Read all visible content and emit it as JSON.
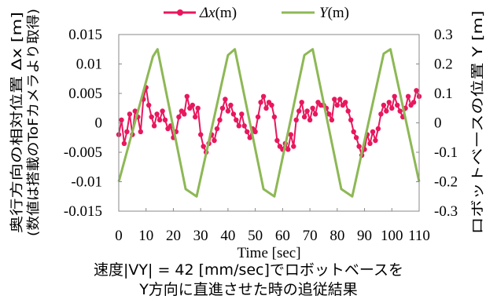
{
  "chart_data": {
    "type": "line",
    "xlabel": "Time [sec]",
    "y1label_line1": "奥行方向の相対位置 Δx [m]",
    "y1label_line2": "(数値は搭載のToFカメラより取得)",
    "y2label": "ロボットベースの位置  Y [m]",
    "xlim": [
      0,
      110
    ],
    "y1lim": [
      -0.015,
      0.015
    ],
    "y2lim": [
      -0.3,
      0.3
    ],
    "xticks": [
      "0",
      "10",
      "20",
      "30",
      "40",
      "50",
      "60",
      "70",
      "80",
      "90",
      "100",
      "110"
    ],
    "y1ticks": [
      "0.015",
      "0.01",
      "0.005",
      "0",
      "-0.005",
      "-0.01",
      "-0.015"
    ],
    "y2ticks": [
      "0.3",
      "0.2",
      "0.1",
      "0",
      "-0.1",
      "-0.2",
      "-0.3"
    ],
    "grid": false,
    "legend_position": "top",
    "series": [
      {
        "name": "Δx(m)",
        "axis": "left",
        "color": "#e8175d",
        "marker": "circle",
        "x": [
          0,
          1,
          2,
          3,
          4,
          5,
          6,
          7,
          8,
          9,
          10,
          11,
          12,
          13,
          14,
          15,
          16,
          17,
          18,
          19,
          20,
          21,
          22,
          23,
          24,
          25,
          26,
          27,
          28,
          29,
          30,
          31,
          32,
          33,
          34,
          35,
          36,
          37,
          38,
          39,
          40,
          41,
          42,
          43,
          44,
          45,
          46,
          47,
          48,
          49,
          50,
          51,
          52,
          53,
          54,
          55,
          56,
          57,
          58,
          59,
          60,
          61,
          62,
          63,
          64,
          65,
          66,
          67,
          68,
          69,
          70,
          71,
          72,
          73,
          74,
          75,
          76,
          77,
          78,
          79,
          80,
          81,
          82,
          83,
          84,
          85,
          86,
          87,
          88,
          89,
          90,
          91,
          92,
          93,
          94,
          95,
          96,
          97,
          98,
          99,
          100,
          101,
          102,
          103,
          104,
          105,
          106,
          107,
          108,
          109,
          110
        ],
        "y": [
          -0.002,
          0.0005,
          -0.0035,
          -0.0015,
          0.0015,
          -0.002,
          0.002,
          0.001,
          -0.0015,
          0.004,
          0.006,
          0.003,
          0.001,
          -0.0005,
          0.0015,
          0.0005,
          0.002,
          0.0005,
          -0.001,
          -0.0005,
          -0.0025,
          -0.0015,
          0.001,
          0.002,
          0.0015,
          0.0045,
          0.0025,
          0.003,
          0.001,
          0.0025,
          -0.002,
          -0.004,
          -0.005,
          -0.0035,
          -0.002,
          -0.003,
          -0.001,
          0.0005,
          0.0025,
          0.004,
          0.002,
          0.003,
          0.0015,
          0.0005,
          -0.0005,
          0.0015,
          -0.0005,
          -0.0015,
          -0.0025,
          -0.001,
          -0.0015,
          0.001,
          0.0035,
          0.0045,
          0.0025,
          0.0035,
          0.003,
          0.001,
          -0.003,
          -0.004,
          -0.0045,
          -0.0035,
          -0.0045,
          -0.002,
          -0.004,
          0.0005,
          0.002,
          0.0035,
          0.001,
          0.002,
          0.0005,
          0.0025,
          0.0015,
          0.0035,
          0.003,
          0.003,
          0.0025,
          0.0015,
          0.0005,
          0.004,
          0.003,
          0.004,
          0.003,
          0.0035,
          0.002,
          0.0005,
          -0.0015,
          -0.0025,
          -0.004,
          -0.0055,
          -0.0045,
          -0.002,
          -0.0035,
          -0.0015,
          -0.003,
          -0.001,
          0.0015,
          0.003,
          0.002,
          0.0035,
          0.0025,
          0.0045,
          0.003,
          0.002,
          0.001,
          0.0025,
          0.0045,
          0.003,
          0.0035,
          0.0055,
          0.0045
        ]
      },
      {
        "name": "Y(m)",
        "axis": "right",
        "color": "#8db855",
        "marker": "none",
        "x": [
          0,
          12.5,
          14.2,
          24.5,
          28.5,
          40,
          42.5,
          53,
          57,
          68,
          71,
          81.5,
          85.5,
          97,
          99.5,
          110
        ],
        "y": [
          -0.2,
          0.225,
          0.25,
          -0.225,
          -0.25,
          0.23,
          0.25,
          -0.225,
          -0.25,
          0.23,
          0.25,
          -0.225,
          -0.25,
          0.235,
          0.25,
          -0.2
        ]
      }
    ]
  },
  "caption": {
    "line1": "速度|VY| = 42 [mm/sec]でロボットベースを",
    "line2": "Y方向に直進させた時の追従結果"
  }
}
